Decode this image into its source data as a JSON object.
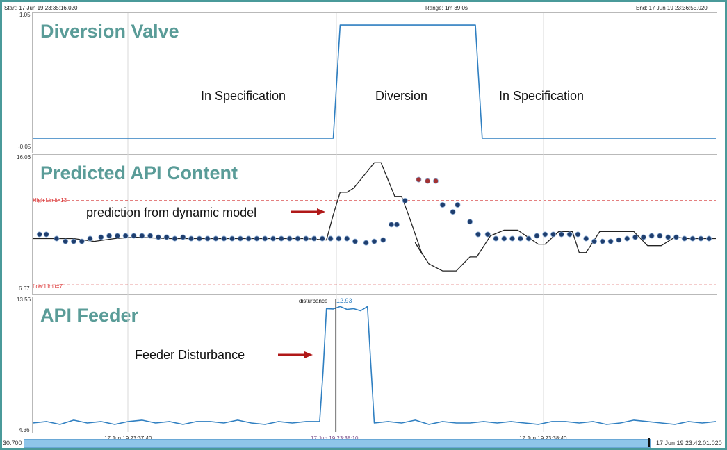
{
  "header": {
    "start": "Start: 17 Jun 19 23:35:16.020",
    "range": "Range: 1m 39.0s",
    "end": "End: 17 Jun 19 23:36:55.020"
  },
  "footer": {
    "left_value": "30.700",
    "right_time": "17 Jun 19 23:42:01.020",
    "xticks": [
      "17 Jun 19 23:37:40",
      "17 Jun 19 23:38:10",
      "17 Jun 19 23:38:40"
    ]
  },
  "colors": {
    "frame": "#4a9a9a",
    "series": "#2f7fc1",
    "pred_line": "#222222",
    "dots": "#1f3e6e",
    "dots_high": "#a33232",
    "limit": "#d33333",
    "title": "#5a9c98"
  },
  "chart_data": [
    {
      "type": "line",
      "title": "Diversion Valve",
      "ylim": [
        -0.05,
        1.05
      ],
      "y_tick_labels": [
        "1.05",
        "-0.05"
      ],
      "x": [
        0,
        0.44,
        0.45,
        0.648,
        0.658,
        1
      ],
      "values": [
        0,
        0,
        1,
        1,
        0,
        0
      ],
      "annotations": [
        "In Specification",
        "Diversion",
        "In Specification"
      ]
    },
    {
      "type": "line",
      "title": "Predicted API Content",
      "ylim": [
        6.67,
        16.06
      ],
      "y_tick_labels": [
        "16.06",
        "6.67"
      ],
      "limits": {
        "high": 13,
        "high_label": "High Limit=13",
        "low": 7,
        "low_label": "Low Limit=7"
      },
      "annotation": "prediction from dynamic model",
      "series": [
        {
          "kind": "line",
          "x": [
            0,
            0.06,
            0.09,
            0.12,
            0.15,
            0.2,
            0.25,
            0.3,
            0.35,
            0.4,
            0.43,
            0.44,
            0.45,
            0.46,
            0.47,
            0.48,
            0.5,
            0.51,
            0.53,
            0.54,
            0.55,
            0.57,
            0.56,
            0.58,
            0.6,
            0.62,
            0.64,
            0.65,
            0.67,
            0.69,
            0.71,
            0.74,
            0.75,
            0.77,
            0.79,
            0.8,
            0.81,
            0.83,
            0.84,
            0.86,
            0.88,
            0.9,
            0.92,
            0.94,
            0.96,
            0.98,
            1
          ],
          "values": [
            10.3,
            10.3,
            10.1,
            10.3,
            10.4,
            10.3,
            10.3,
            10.3,
            10.3,
            10.3,
            10.2,
            12.0,
            13.6,
            13.6,
            13.9,
            14.5,
            15.7,
            15.7,
            13.3,
            13.3,
            12.0,
            9.2,
            10.0,
            8.5,
            8.0,
            8.0,
            9.0,
            9.0,
            10.5,
            10.9,
            10.9,
            9.9,
            9.9,
            10.8,
            10.8,
            9.3,
            9.3,
            10.8,
            10.8,
            10.8,
            10.8,
            9.8,
            9.8,
            10.4,
            10.3,
            10.3,
            10.3
          ]
        },
        {
          "kind": "scatter",
          "x": [
            0.01,
            0.02,
            0.035,
            0.048,
            0.06,
            0.072,
            0.084,
            0.1,
            0.112,
            0.124,
            0.136,
            0.148,
            0.16,
            0.172,
            0.184,
            0.196,
            0.208,
            0.22,
            0.232,
            0.244,
            0.256,
            0.268,
            0.28,
            0.292,
            0.304,
            0.316,
            0.328,
            0.34,
            0.352,
            0.364,
            0.376,
            0.388,
            0.4,
            0.412,
            0.424,
            0.436,
            0.448,
            0.46,
            0.472,
            0.488,
            0.5,
            0.513,
            0.525,
            0.533,
            0.545,
            0.565,
            0.578,
            0.59,
            0.6,
            0.615,
            0.622,
            0.64,
            0.652,
            0.666,
            0.678,
            0.69,
            0.702,
            0.714,
            0.726,
            0.738,
            0.75,
            0.762,
            0.774,
            0.786,
            0.798,
            0.81,
            0.822,
            0.834,
            0.846,
            0.858,
            0.87,
            0.882,
            0.894,
            0.906,
            0.918,
            0.93,
            0.942,
            0.954,
            0.966,
            0.978,
            0.99
          ],
          "values": [
            10.6,
            10.6,
            10.3,
            10.1,
            10.1,
            10.1,
            10.3,
            10.4,
            10.5,
            10.5,
            10.5,
            10.5,
            10.5,
            10.5,
            10.4,
            10.4,
            10.3,
            10.4,
            10.3,
            10.3,
            10.3,
            10.3,
            10.3,
            10.3,
            10.3,
            10.3,
            10.3,
            10.3,
            10.3,
            10.3,
            10.3,
            10.3,
            10.3,
            10.3,
            10.3,
            10.3,
            10.3,
            10.3,
            10.1,
            10.0,
            10.1,
            10.2,
            11.3,
            11.3,
            13.0,
            14.5,
            14.4,
            14.4,
            12.7,
            12.2,
            12.7,
            11.5,
            10.6,
            10.6,
            10.3,
            10.3,
            10.3,
            10.3,
            10.3,
            10.5,
            10.6,
            10.6,
            10.6,
            10.6,
            10.6,
            10.3,
            10.1,
            10.1,
            10.1,
            10.2,
            10.3,
            10.4,
            10.4,
            10.5,
            10.5,
            10.4,
            10.4,
            10.3,
            10.3,
            10.3,
            10.3
          ]
        }
      ]
    },
    {
      "type": "line",
      "title": "API Feeder",
      "ylim": [
        4.36,
        13.56
      ],
      "y_tick_labels": [
        "13.56",
        "4.36"
      ],
      "annotation": "Feeder Disturbance",
      "marker": {
        "label": "disturbance",
        "value_label": "12.93"
      },
      "x": [
        0,
        0.02,
        0.04,
        0.06,
        0.08,
        0.1,
        0.12,
        0.14,
        0.16,
        0.18,
        0.2,
        0.22,
        0.24,
        0.26,
        0.28,
        0.3,
        0.32,
        0.34,
        0.36,
        0.38,
        0.4,
        0.42,
        0.425,
        0.43,
        0.44,
        0.45,
        0.46,
        0.47,
        0.48,
        0.49,
        0.5,
        0.52,
        0.54,
        0.56,
        0.58,
        0.6,
        0.62,
        0.64,
        0.66,
        0.68,
        0.7,
        0.72,
        0.74,
        0.76,
        0.78,
        0.8,
        0.82,
        0.84,
        0.86,
        0.88,
        0.9,
        0.92,
        0.94,
        0.96,
        0.98,
        1
      ],
      "values": [
        4.9,
        5.0,
        4.8,
        5.1,
        4.9,
        5.0,
        4.8,
        5.0,
        5.1,
        4.9,
        5.0,
        4.8,
        5.0,
        5.0,
        4.9,
        5.1,
        4.9,
        4.8,
        5.0,
        4.9,
        5.0,
        5.0,
        8.5,
        12.95,
        12.93,
        13.1,
        12.9,
        12.95,
        12.8,
        13.1,
        4.9,
        5.0,
        4.9,
        5.1,
        4.8,
        5.0,
        4.9,
        4.9,
        5.0,
        4.9,
        5.0,
        4.9,
        4.8,
        5.0,
        5.0,
        4.9,
        5.0,
        4.8,
        4.9,
        5.1,
        5.0,
        4.9,
        4.8,
        5.0,
        4.9,
        5.0
      ]
    }
  ]
}
